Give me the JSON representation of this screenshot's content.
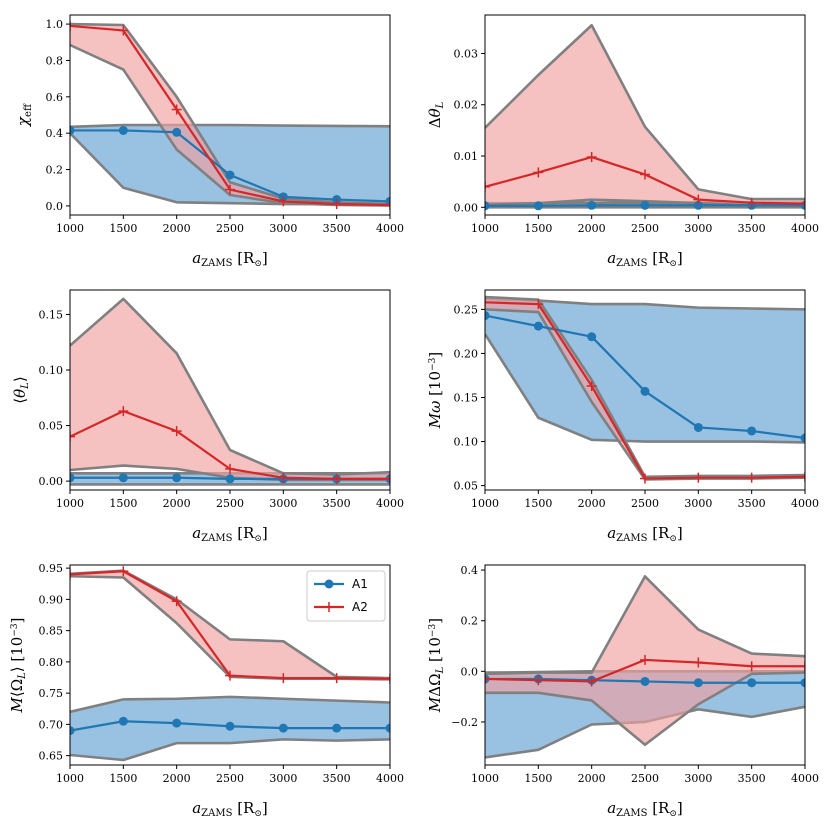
{
  "colors": {
    "a1": "#1f77b4",
    "a2": "#d62728",
    "a1_band": "#5a9bd0",
    "a2_band": "#f0a0a0",
    "band_edge": "#808080"
  },
  "legend": {
    "a1": "A1",
    "a2": "A2"
  },
  "chart_data": [
    {
      "type": "line",
      "panel": "chi_eff",
      "x": [
        1000,
        1500,
        2000,
        2500,
        3000,
        3500,
        4000
      ],
      "xlabel": "a_ZAMS [R⊙]",
      "ylabel": "χ_eff",
      "xlim": [
        1000,
        4000
      ],
      "ylim": [
        -0.05,
        1.05
      ],
      "xticks": [
        "1000",
        "1500",
        "2000",
        "2500",
        "3000",
        "3500",
        "4000"
      ],
      "yticks": [
        0.0,
        0.2,
        0.4,
        0.6,
        0.8,
        1.0
      ],
      "ytick_labels": [
        "0.0",
        "0.2",
        "0.4",
        "0.6",
        "0.8",
        "1.0"
      ],
      "series": [
        {
          "name": "A1",
          "values": [
            0.415,
            0.415,
            0.405,
            0.17,
            0.05,
            0.035,
            0.025
          ],
          "lower": [
            0.4,
            0.1,
            0.02,
            0.015,
            0.01,
            0.01,
            0.01
          ],
          "upper": [
            0.435,
            0.445,
            0.445,
            0.445,
            0.442,
            0.44,
            0.438
          ]
        },
        {
          "name": "A2",
          "values": [
            0.99,
            0.965,
            0.53,
            0.09,
            0.025,
            0.01,
            0.005
          ],
          "lower": [
            0.885,
            0.75,
            0.31,
            0.06,
            0.015,
            0.005,
            0.002
          ],
          "upper": [
            1.0,
            0.995,
            0.6,
            0.13,
            0.04,
            0.02,
            0.01
          ]
        }
      ]
    },
    {
      "type": "line",
      "panel": "delta_theta_L",
      "x": [
        1000,
        1500,
        2000,
        2500,
        3000,
        3500,
        4000
      ],
      "xlabel": "a_ZAMS [R⊙]",
      "ylabel": "Δθ_L",
      "xlim": [
        1000,
        4000
      ],
      "ylim": [
        -0.0015,
        0.0375
      ],
      "xticks": [
        "1000",
        "1500",
        "2000",
        "2500",
        "3000",
        "3500",
        "4000"
      ],
      "yticks": [
        0.0,
        0.01,
        0.02,
        0.03
      ],
      "ytick_labels": [
        "0.00",
        "0.01",
        "0.02",
        "0.03"
      ],
      "series": [
        {
          "name": "A1",
          "values": [
            0.0003,
            0.0003,
            0.0004,
            0.0004,
            0.0004,
            0.0004,
            0.0004
          ],
          "lower": [
            0.0,
            0.0,
            0.0,
            0.0,
            0.0,
            0.0,
            0.0
          ],
          "upper": [
            0.0008,
            0.0008,
            0.0009,
            0.0009,
            0.0009,
            0.0009,
            0.0009
          ]
        },
        {
          "name": "A2",
          "values": [
            0.004,
            0.0068,
            0.0098,
            0.0064,
            0.0015,
            0.0009,
            0.0007
          ],
          "lower": [
            0.0005,
            0.0008,
            0.0015,
            0.0012,
            0.0008,
            0.0004,
            0.0003
          ],
          "upper": [
            0.0155,
            0.0258,
            0.0355,
            0.0157,
            0.0035,
            0.0016,
            0.0016
          ]
        }
      ]
    },
    {
      "type": "line",
      "panel": "mean_theta_L",
      "x": [
        1000,
        1500,
        2000,
        2500,
        3000,
        3500,
        4000
      ],
      "xlabel": "a_ZAMS [R⊙]",
      "ylabel": "⟨θ_L⟩",
      "xlim": [
        1000,
        4000
      ],
      "ylim": [
        -0.008,
        0.172
      ],
      "xticks": [
        "1000",
        "1500",
        "2000",
        "2500",
        "3000",
        "3500",
        "4000"
      ],
      "yticks": [
        0.0,
        0.05,
        0.1,
        0.15
      ],
      "ytick_labels": [
        "0.00",
        "0.05",
        "0.10",
        "0.15"
      ],
      "series": [
        {
          "name": "A1",
          "values": [
            0.003,
            0.003,
            0.003,
            0.002,
            0.002,
            0.002,
            0.002
          ],
          "lower": [
            -0.003,
            -0.003,
            -0.003,
            -0.003,
            -0.003,
            -0.003,
            -0.003
          ],
          "upper": [
            0.007,
            0.007,
            0.007,
            0.007,
            0.007,
            0.007,
            0.007
          ]
        },
        {
          "name": "A2",
          "values": [
            0.04,
            0.063,
            0.045,
            0.011,
            0.003,
            0.002,
            0.002
          ],
          "lower": [
            0.01,
            0.014,
            0.011,
            0.003,
            0.001,
            0.001,
            0.001
          ],
          "upper": [
            0.122,
            0.164,
            0.115,
            0.028,
            0.007,
            0.006,
            0.008
          ]
        }
      ]
    },
    {
      "type": "line",
      "panel": "M_omega",
      "x": [
        1000,
        1500,
        2000,
        2500,
        3000,
        3500,
        4000
      ],
      "xlabel": "a_ZAMS [R⊙]",
      "ylabel": "Mω [10^-3]",
      "xlim": [
        1000,
        4000
      ],
      "ylim": [
        0.045,
        0.272
      ],
      "xticks": [
        "1000",
        "1500",
        "2000",
        "2500",
        "3000",
        "3500",
        "4000"
      ],
      "yticks": [
        0.05,
        0.1,
        0.15,
        0.2,
        0.25
      ],
      "ytick_labels": [
        "0.05",
        "0.10",
        "0.15",
        "0.20",
        "0.25"
      ],
      "series": [
        {
          "name": "A1",
          "values": [
            0.243,
            0.231,
            0.219,
            0.157,
            0.116,
            0.112,
            0.104
          ],
          "lower": [
            0.222,
            0.127,
            0.102,
            0.1,
            0.1,
            0.1,
            0.099
          ],
          "upper": [
            0.262,
            0.26,
            0.256,
            0.256,
            0.252,
            0.251,
            0.25
          ]
        },
        {
          "name": "A2",
          "values": [
            0.258,
            0.256,
            0.163,
            0.058,
            0.059,
            0.059,
            0.06
          ],
          "lower": [
            0.25,
            0.247,
            0.145,
            0.057,
            0.058,
            0.058,
            0.059
          ],
          "upper": [
            0.264,
            0.261,
            0.17,
            0.06,
            0.061,
            0.061,
            0.062
          ]
        }
      ]
    },
    {
      "type": "line",
      "panel": "M_mean_Omega_L",
      "x": [
        1000,
        1500,
        2000,
        2500,
        3000,
        3500,
        4000
      ],
      "xlabel": "a_ZAMS [R⊙]",
      "ylabel": "M⟨Ω_L⟩ [10^-3]",
      "xlim": [
        1000,
        4000
      ],
      "ylim": [
        0.635,
        0.955
      ],
      "xticks": [
        "1000",
        "1500",
        "2000",
        "2500",
        "3000",
        "3500",
        "4000"
      ],
      "yticks": [
        0.65,
        0.7,
        0.75,
        0.8,
        0.85,
        0.9,
        0.95
      ],
      "ytick_labels": [
        "0.65",
        "0.70",
        "0.75",
        "0.80",
        "0.85",
        "0.90",
        "0.95"
      ],
      "series": [
        {
          "name": "A1",
          "values": [
            0.69,
            0.705,
            0.702,
            0.697,
            0.694,
            0.694,
            0.694
          ],
          "lower": [
            0.651,
            0.643,
            0.67,
            0.67,
            0.676,
            0.674,
            0.676
          ],
          "upper": [
            0.72,
            0.74,
            0.741,
            0.744,
            0.741,
            0.738,
            0.735
          ]
        },
        {
          "name": "A2",
          "values": [
            0.94,
            0.945,
            0.897,
            0.778,
            0.774,
            0.774,
            0.773
          ],
          "lower": [
            0.937,
            0.935,
            0.862,
            0.776,
            0.773,
            0.773,
            0.772
          ],
          "upper": [
            0.941,
            0.946,
            0.9,
            0.836,
            0.833,
            0.776,
            0.774
          ]
        }
      ]
    },
    {
      "type": "line",
      "panel": "M_delta_Omega_L",
      "x": [
        1000,
        1500,
        2000,
        2500,
        3000,
        3500,
        4000
      ],
      "xlabel": "a_ZAMS [R⊙]",
      "ylabel": "MΔΩ_L [10^-3]",
      "xlim": [
        1000,
        4000
      ],
      "ylim": [
        -0.37,
        0.42
      ],
      "xticks": [
        "1000",
        "1500",
        "2000",
        "2500",
        "3000",
        "3500",
        "4000"
      ],
      "yticks": [
        -0.2,
        0.0,
        0.2,
        0.4
      ],
      "ytick_labels": [
        "−0.2",
        "0.0",
        "0.2",
        "0.4"
      ],
      "series": [
        {
          "name": "A1",
          "values": [
            -0.03,
            -0.03,
            -0.035,
            -0.04,
            -0.045,
            -0.045,
            -0.045
          ],
          "lower": [
            -0.34,
            -0.31,
            -0.21,
            -0.2,
            -0.15,
            -0.18,
            -0.14
          ],
          "upper": [
            -0.005,
            -0.003,
            0.0,
            0.0,
            0.0,
            0.0,
            0.0
          ]
        },
        {
          "name": "A2",
          "values": [
            -0.03,
            -0.035,
            -0.04,
            0.045,
            0.035,
            0.02,
            0.02
          ],
          "lower": [
            -0.085,
            -0.085,
            -0.115,
            -0.29,
            -0.13,
            -0.01,
            -0.005
          ],
          "upper": [
            -0.01,
            -0.005,
            -0.005,
            0.375,
            0.165,
            0.07,
            0.06
          ]
        }
      ]
    }
  ]
}
